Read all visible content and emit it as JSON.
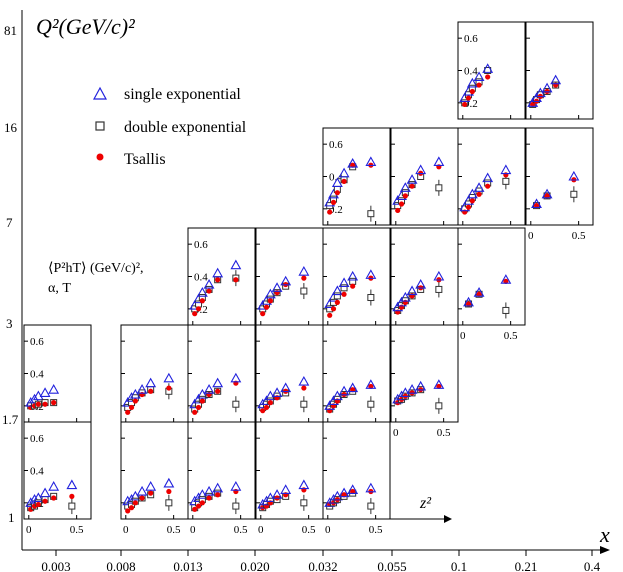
{
  "chart_data": {
    "type": "scatter",
    "title": "",
    "ylabel_main": "Q^2(GeV/c)^2",
    "ylabel_main_display": "Q²(GeV/c)²",
    "xlabel_main": "x",
    "inner_ylabel_lines": [
      "⟨P²hT⟩ (GeV/c)²,",
      "α, T"
    ],
    "inner_xlabel": "z²",
    "x_bin_labels": [
      "0.003",
      "0.008",
      "0.013",
      "0.020",
      "0.032",
      "0.055",
      "0.1",
      "0.21",
      "0.4"
    ],
    "q2_bin_labels": [
      "81",
      "16",
      "7",
      "3",
      "1.7",
      "1"
    ],
    "panel_ylim": [
      0.1,
      0.7
    ],
    "panel_yticks": [
      "0.2",
      "0.4",
      "0.6"
    ],
    "panel_xlim": [
      -0.05,
      0.65
    ],
    "panel_xticks": [
      "0",
      "0.5"
    ],
    "z2_points": [
      0.02,
      0.06,
      0.1,
      0.17,
      0.26,
      0.45
    ],
    "legend": [
      {
        "key": "single",
        "label": "single exponential",
        "marker": "triangle",
        "color": "#2222dd"
      },
      {
        "key": "double",
        "label": "double exponential",
        "marker": "square",
        "color": "#333333"
      },
      {
        "key": "tsallis",
        "label": "Tsallis",
        "marker": "dot",
        "color": "#ee0000"
      }
    ],
    "panels": [
      {
        "id": "q0-x0",
        "q_bin": 0,
        "x_bin": 0,
        "xticks": true,
        "yticks": true,
        "single": [
          0.2,
          0.22,
          0.23,
          0.26,
          0.3,
          0.31
        ],
        "double": [
          0.17,
          0.18,
          0.2,
          0.22,
          0.24,
          0.18
        ],
        "tsallis": [
          0.16,
          0.18,
          0.19,
          0.21,
          0.23,
          0.24
        ]
      },
      {
        "id": "q0-x1",
        "q_bin": 0,
        "x_bin": 1,
        "xticks": true,
        "yticks": false,
        "single": [
          0.21,
          0.22,
          0.24,
          0.27,
          0.3,
          0.32
        ],
        "double": [
          0.18,
          0.19,
          0.21,
          0.23,
          0.25,
          0.2
        ],
        "tsallis": [
          0.15,
          0.17,
          0.2,
          0.23,
          0.26,
          0.27
        ]
      },
      {
        "id": "q0-x2",
        "q_bin": 0,
        "x_bin": 2,
        "xticks": true,
        "yticks": false,
        "single": [
          0.21,
          0.23,
          0.25,
          0.27,
          0.29,
          0.3
        ],
        "double": [
          0.17,
          0.2,
          0.22,
          0.24,
          0.26,
          0.18
        ],
        "tsallis": [
          0.16,
          0.18,
          0.2,
          0.23,
          0.25,
          0.27
        ]
      },
      {
        "id": "q0-x3",
        "q_bin": 0,
        "x_bin": 3,
        "xticks": true,
        "yticks": false,
        "single": [
          0.19,
          0.21,
          0.23,
          0.25,
          0.28,
          0.31
        ],
        "double": [
          0.17,
          0.19,
          0.21,
          0.22,
          0.24,
          0.2
        ],
        "tsallis": [
          0.17,
          0.18,
          0.2,
          0.23,
          0.25,
          0.28
        ]
      },
      {
        "id": "q0-x4",
        "q_bin": 0,
        "x_bin": 4,
        "xticks": true,
        "yticks": false,
        "single": [
          0.2,
          0.22,
          0.24,
          0.26,
          0.28,
          0.29
        ],
        "double": [
          0.18,
          0.2,
          0.22,
          0.24,
          0.26,
          0.18
        ],
        "tsallis": [
          0.19,
          0.2,
          0.22,
          0.25,
          0.27,
          0.27
        ]
      },
      {
        "id": "q1-x0",
        "q_bin": 1,
        "x_bin": 0,
        "xticks": false,
        "yticks": true,
        "single": [
          0.22,
          0.24,
          0.26,
          0.28,
          0.3,
          null
        ],
        "double": [
          0.2,
          0.2,
          0.21,
          0.22,
          0.22,
          null
        ],
        "tsallis": [
          0.19,
          0.2,
          0.21,
          0.21,
          0.22,
          null
        ]
      },
      {
        "id": "q1-x1",
        "q_bin": 1,
        "x_bin": 1,
        "xticks": false,
        "yticks": false,
        "single": [
          0.22,
          0.25,
          0.27,
          0.3,
          0.34,
          0.37
        ],
        "double": [
          0.19,
          0.22,
          0.25,
          0.28,
          0.3,
          0.29
        ],
        "tsallis": [
          0.16,
          0.19,
          0.23,
          0.27,
          0.29,
          0.31
        ]
      },
      {
        "id": "q1-x2",
        "q_bin": 1,
        "x_bin": 2,
        "xticks": false,
        "yticks": false,
        "single": [
          0.21,
          0.24,
          0.27,
          0.3,
          0.34,
          0.37
        ],
        "double": [
          0.18,
          0.21,
          0.24,
          0.27,
          0.29,
          0.21
        ],
        "tsallis": [
          0.16,
          0.19,
          0.23,
          0.27,
          0.29,
          0.34
        ]
      },
      {
        "id": "q1-x3",
        "q_bin": 1,
        "x_bin": 3,
        "xticks": false,
        "yticks": false,
        "single": [
          0.21,
          0.23,
          0.26,
          0.28,
          0.31,
          0.35
        ],
        "double": [
          0.19,
          0.21,
          0.23,
          0.26,
          0.28,
          0.21
        ],
        "tsallis": [
          0.17,
          0.19,
          0.22,
          0.25,
          0.29,
          0.31
        ]
      },
      {
        "id": "q1-x4",
        "q_bin": 1,
        "x_bin": 4,
        "xticks": false,
        "yticks": false,
        "single": [
          0.2,
          0.23,
          0.26,
          0.29,
          0.31,
          0.33
        ],
        "double": [
          0.18,
          0.21,
          0.24,
          0.27,
          0.29,
          0.21
        ],
        "tsallis": [
          0.17,
          0.2,
          0.23,
          0.27,
          0.3,
          0.32
        ]
      },
      {
        "id": "q1-x5",
        "q_bin": 1,
        "x_bin": 5,
        "xticks": true,
        "yticks": false,
        "single": [
          0.24,
          0.26,
          0.28,
          0.3,
          0.32,
          0.33
        ],
        "double": [
          0.23,
          0.24,
          0.26,
          0.28,
          0.3,
          0.2
        ],
        "tsallis": [
          0.22,
          0.24,
          0.26,
          0.28,
          0.3,
          0.32
        ]
      },
      {
        "id": "q2-x2",
        "q_bin": 2,
        "x_bin": 2,
        "xticks": false,
        "yticks": true,
        "single": [
          0.22,
          0.26,
          0.3,
          0.35,
          0.42,
          0.47
        ],
        "double": [
          0.2,
          0.23,
          0.27,
          0.32,
          0.38,
          0.39
        ],
        "tsallis": [
          0.17,
          0.2,
          0.25,
          0.31,
          0.38,
          0.38
        ]
      },
      {
        "id": "q2-x3",
        "q_bin": 2,
        "x_bin": 3,
        "xticks": false,
        "yticks": false,
        "single": [
          0.22,
          0.25,
          0.29,
          0.33,
          0.37,
          0.43
        ],
        "double": [
          0.2,
          0.23,
          0.26,
          0.3,
          0.34,
          0.31
        ],
        "tsallis": [
          0.17,
          0.21,
          0.25,
          0.3,
          0.35,
          0.39
        ]
      },
      {
        "id": "q2-x4",
        "q_bin": 2,
        "x_bin": 4,
        "xticks": false,
        "yticks": false,
        "single": [
          0.23,
          0.27,
          0.31,
          0.36,
          0.4,
          0.41
        ],
        "double": [
          0.2,
          0.24,
          0.28,
          0.33,
          0.37,
          0.27
        ],
        "tsallis": [
          0.16,
          0.2,
          0.24,
          0.29,
          0.34,
          0.39
        ]
      },
      {
        "id": "q2-x5",
        "q_bin": 2,
        "x_bin": 5,
        "xticks": false,
        "yticks": false,
        "single": [
          0.21,
          0.24,
          0.27,
          0.31,
          0.35,
          0.4
        ],
        "double": [
          0.19,
          0.22,
          0.25,
          0.28,
          0.32,
          0.32
        ],
        "tsallis": [
          0.18,
          0.21,
          0.24,
          0.28,
          0.33,
          0.38
        ]
      },
      {
        "id": "q2-x6",
        "q_bin": 2,
        "x_bin": 6,
        "xticks": true,
        "yticks": false,
        "single": [
          null,
          0.24,
          null,
          0.3,
          null,
          0.38
        ],
        "double": [
          null,
          0.23,
          null,
          0.29,
          null,
          0.19
        ],
        "tsallis": [
          null,
          0.23,
          null,
          0.29,
          null,
          0.37
        ]
      },
      {
        "id": "q3-x4",
        "q_bin": 3,
        "x_bin": 4,
        "xticks": false,
        "yticks": true,
        "single": [
          0.24,
          0.29,
          0.36,
          0.42,
          0.48,
          0.49
        ],
        "double": [
          0.22,
          0.26,
          0.32,
          0.38,
          0.46,
          0.17
        ],
        "tsallis": [
          0.18,
          0.24,
          0.3,
          0.37,
          0.47,
          0.47
        ]
      },
      {
        "id": "q3-x5",
        "q_bin": 3,
        "x_bin": 5,
        "xticks": false,
        "yticks": false,
        "single": [
          0.25,
          0.28,
          0.33,
          0.38,
          0.44,
          0.49
        ],
        "double": [
          0.22,
          0.25,
          0.3,
          0.35,
          0.4,
          0.33
        ],
        "tsallis": [
          0.19,
          0.23,
          0.28,
          0.34,
          0.42,
          0.46
        ]
      },
      {
        "id": "q3-x6",
        "q_bin": 3,
        "x_bin": 6,
        "xticks": false,
        "yticks": false,
        "single": [
          0.21,
          0.25,
          0.29,
          0.33,
          0.39,
          0.44
        ],
        "double": [
          0.2,
          0.23,
          0.27,
          0.31,
          0.36,
          0.37
        ],
        "tsallis": [
          0.18,
          0.21,
          0.25,
          0.29,
          0.34,
          0.41
        ]
      },
      {
        "id": "q3-x7",
        "q_bin": 3,
        "x_bin": 7,
        "xticks": true,
        "yticks": false,
        "single": [
          null,
          0.23,
          null,
          0.29,
          null,
          0.4
        ],
        "double": [
          null,
          0.22,
          null,
          0.28,
          null,
          0.29
        ],
        "tsallis": [
          null,
          0.22,
          null,
          0.28,
          null,
          0.38
        ]
      },
      {
        "id": "q4-x6",
        "q_bin": 4,
        "x_bin": 6,
        "xticks": false,
        "yticks": true,
        "single": [
          0.23,
          0.27,
          0.32,
          0.36,
          0.41,
          null
        ],
        "double": [
          0.2,
          0.25,
          0.29,
          0.33,
          0.4,
          null
        ],
        "tsallis": [
          0.19,
          0.23,
          0.27,
          0.31,
          0.36,
          null
        ]
      },
      {
        "id": "q4-x7",
        "q_bin": 4,
        "x_bin": 7,
        "xticks": false,
        "yticks": false,
        "single": [
          0.2,
          0.23,
          0.26,
          0.29,
          0.34,
          null
        ],
        "double": [
          0.19,
          0.22,
          0.25,
          0.27,
          0.31,
          null
        ],
        "tsallis": [
          0.19,
          0.21,
          0.24,
          0.27,
          0.31,
          null
        ]
      }
    ]
  }
}
